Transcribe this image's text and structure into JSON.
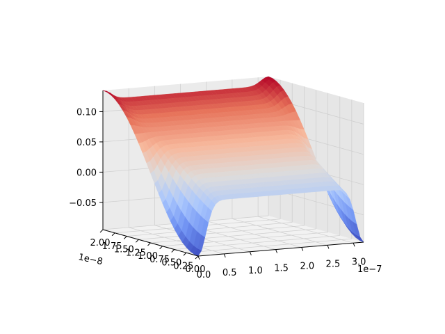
{
  "chart_data": {
    "type": "surface",
    "title": "",
    "xlabel": "",
    "ylabel": "",
    "zlabel": "",
    "colormap": "coolwarm",
    "colormap_stops": [
      "#3b4cc0",
      "#6f92f3",
      "#aac7fd",
      "#dddcdc",
      "#f7b89c",
      "#e7745b",
      "#b40426"
    ],
    "x_offset_label": "1e−7",
    "y_offset_label": "1e−8",
    "x_ticks": [
      "0.0",
      "0.5",
      "1.0",
      "1.5",
      "2.0",
      "2.5",
      "3.0"
    ],
    "y_ticks": [
      "0.00",
      "0.25",
      "0.50",
      "0.75",
      "1.00",
      "1.25",
      "1.50",
      "1.75",
      "2.00"
    ],
    "z_ticks": [
      "−0.05",
      "0.00",
      "0.05",
      "0.10"
    ],
    "x_range": [
      0,
      3.2e-07
    ],
    "y_range": [
      0,
      2e-08
    ],
    "z_range": [
      -0.095,
      0.135
    ],
    "x_tick_values": [
      0,
      5e-08,
      1e-07,
      1.5e-07,
      2e-07,
      2.5e-07,
      3e-07
    ],
    "y_tick_values": [
      0,
      2.5e-09,
      5e-09,
      7.5e-09,
      1e-08,
      1.25e-08,
      1.5e-08,
      1.75e-08,
      2e-08
    ],
    "z_tick_values": [
      -0.05,
      0,
      0.05,
      0.1
    ],
    "surface": {
      "x_end_walls": [
        0,
        3.2e-07
      ],
      "plateau_z_range": [
        -0.005,
        0.12
      ],
      "end_peak_z": 0.135,
      "end_trough_z": -0.095
    },
    "grid": true,
    "legend": "none"
  }
}
